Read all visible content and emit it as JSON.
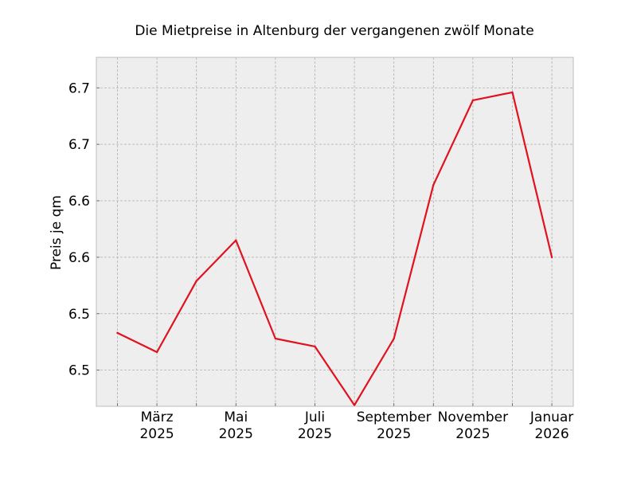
{
  "chart_data": {
    "type": "line",
    "title": "Die Mietpreise in Altenburg der vergangenen zwölf Monate",
    "xlabel": "",
    "ylabel": "Preis je qm",
    "x": [
      "2025-02",
      "2025-03",
      "2025-04",
      "2025-05",
      "2025-06",
      "2025-07",
      "2025-08",
      "2025-09",
      "2025-10",
      "2025-11",
      "2025-12",
      "2026-01"
    ],
    "series": [
      {
        "values": [
          6.483,
          6.466,
          6.529,
          6.565,
          6.478,
          6.471,
          6.419,
          6.478,
          6.614,
          6.689,
          6.696,
          6.55
        ],
        "color": "#e0121f"
      }
    ],
    "ylim": [
      6.418,
      6.727
    ],
    "yticks": [
      6.45,
      6.5,
      6.55,
      6.6,
      6.65,
      6.7
    ],
    "ytick_labels": [
      "6.5",
      "6.5",
      "6.6",
      "6.6",
      "6.7",
      "6.7"
    ],
    "xtick_labels": [
      {
        "index": 1,
        "line1": "März",
        "line2": "2025"
      },
      {
        "index": 3,
        "line1": "Mai",
        "line2": "2025"
      },
      {
        "index": 5,
        "line1": "Juli",
        "line2": "2025"
      },
      {
        "index": 7,
        "line1": "September",
        "line2": "2025"
      },
      {
        "index": 9,
        "line1": "November",
        "line2": "2025"
      },
      {
        "index": 11,
        "line1": "Januar",
        "line2": "2026"
      }
    ],
    "grid": true,
    "background": "#eeeeee",
    "grid_color": "#b0b0b0"
  }
}
